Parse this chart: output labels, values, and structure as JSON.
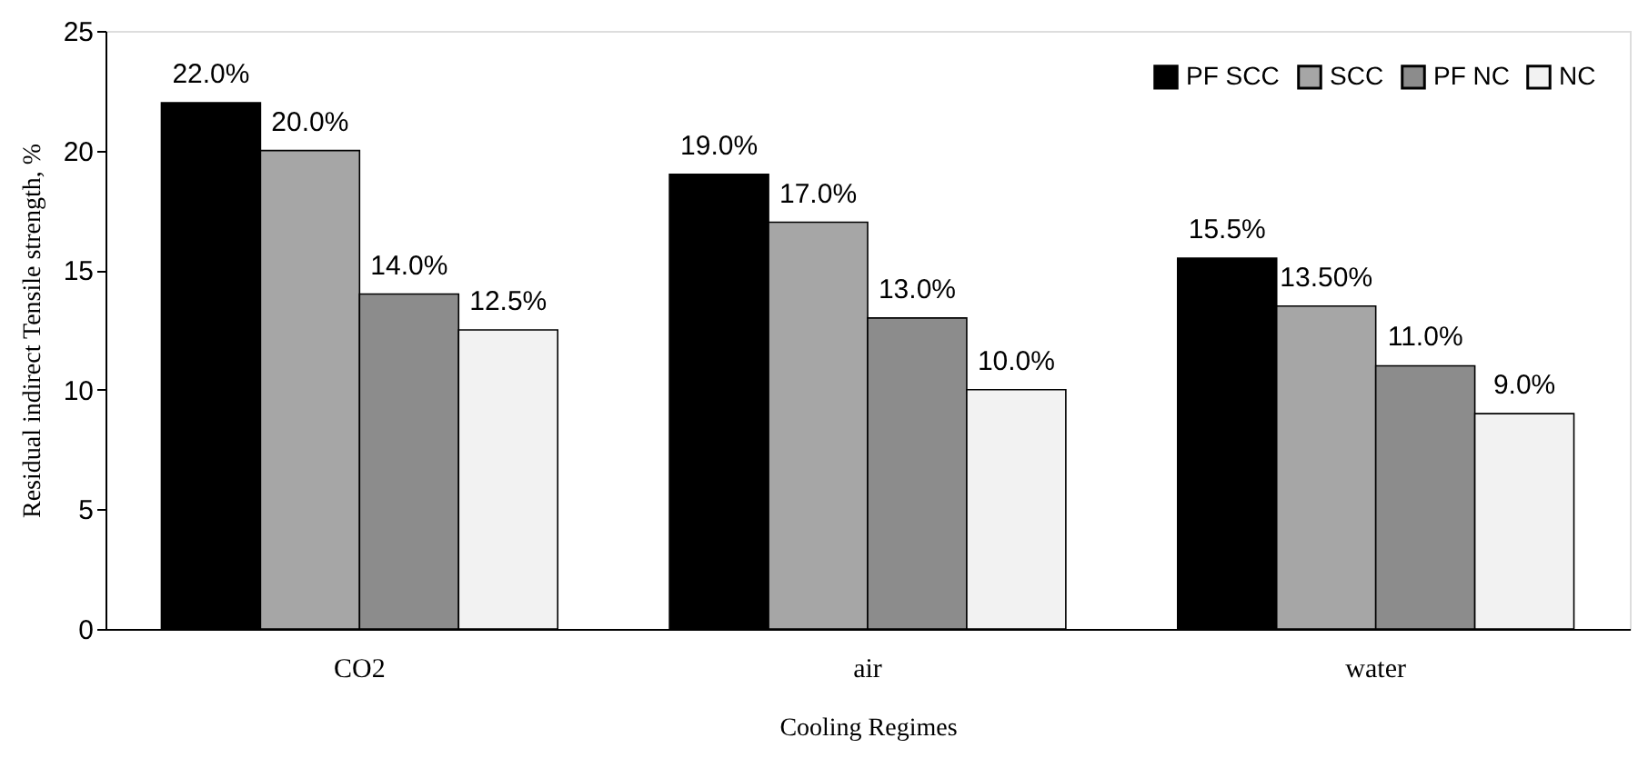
{
  "chart_data": {
    "type": "bar",
    "xlabel": "Cooling Regimes",
    "ylabel": "Residual indirect Tensile strength, %",
    "categories": [
      "CO2",
      "air",
      "water"
    ],
    "series": [
      {
        "name": "PF SCC",
        "color": "#000000",
        "values": [
          22,
          19,
          15.5
        ],
        "value_labels": [
          "22.0%",
          "19.0%",
          "15.5%"
        ]
      },
      {
        "name": "SCC",
        "color": "#a6a6a6",
        "values": [
          20,
          17,
          13.5
        ],
        "value_labels": [
          "20.0%",
          "17.0%",
          "13.50%"
        ]
      },
      {
        "name": "PF NC",
        "color": "#8c8c8c",
        "values": [
          14,
          13,
          11
        ],
        "value_labels": [
          "14.0%",
          "13.0%",
          "11.0%"
        ]
      },
      {
        "name": "NC",
        "color": "#f2f2f2",
        "values": [
          12.5,
          10,
          9
        ],
        "value_labels": [
          "12.5%",
          "10.0%",
          "9.0%"
        ]
      }
    ],
    "ylim": [
      0,
      25
    ],
    "yticks": [
      0,
      5,
      10,
      15,
      20,
      25
    ],
    "grid": false,
    "legend": "top right"
  }
}
